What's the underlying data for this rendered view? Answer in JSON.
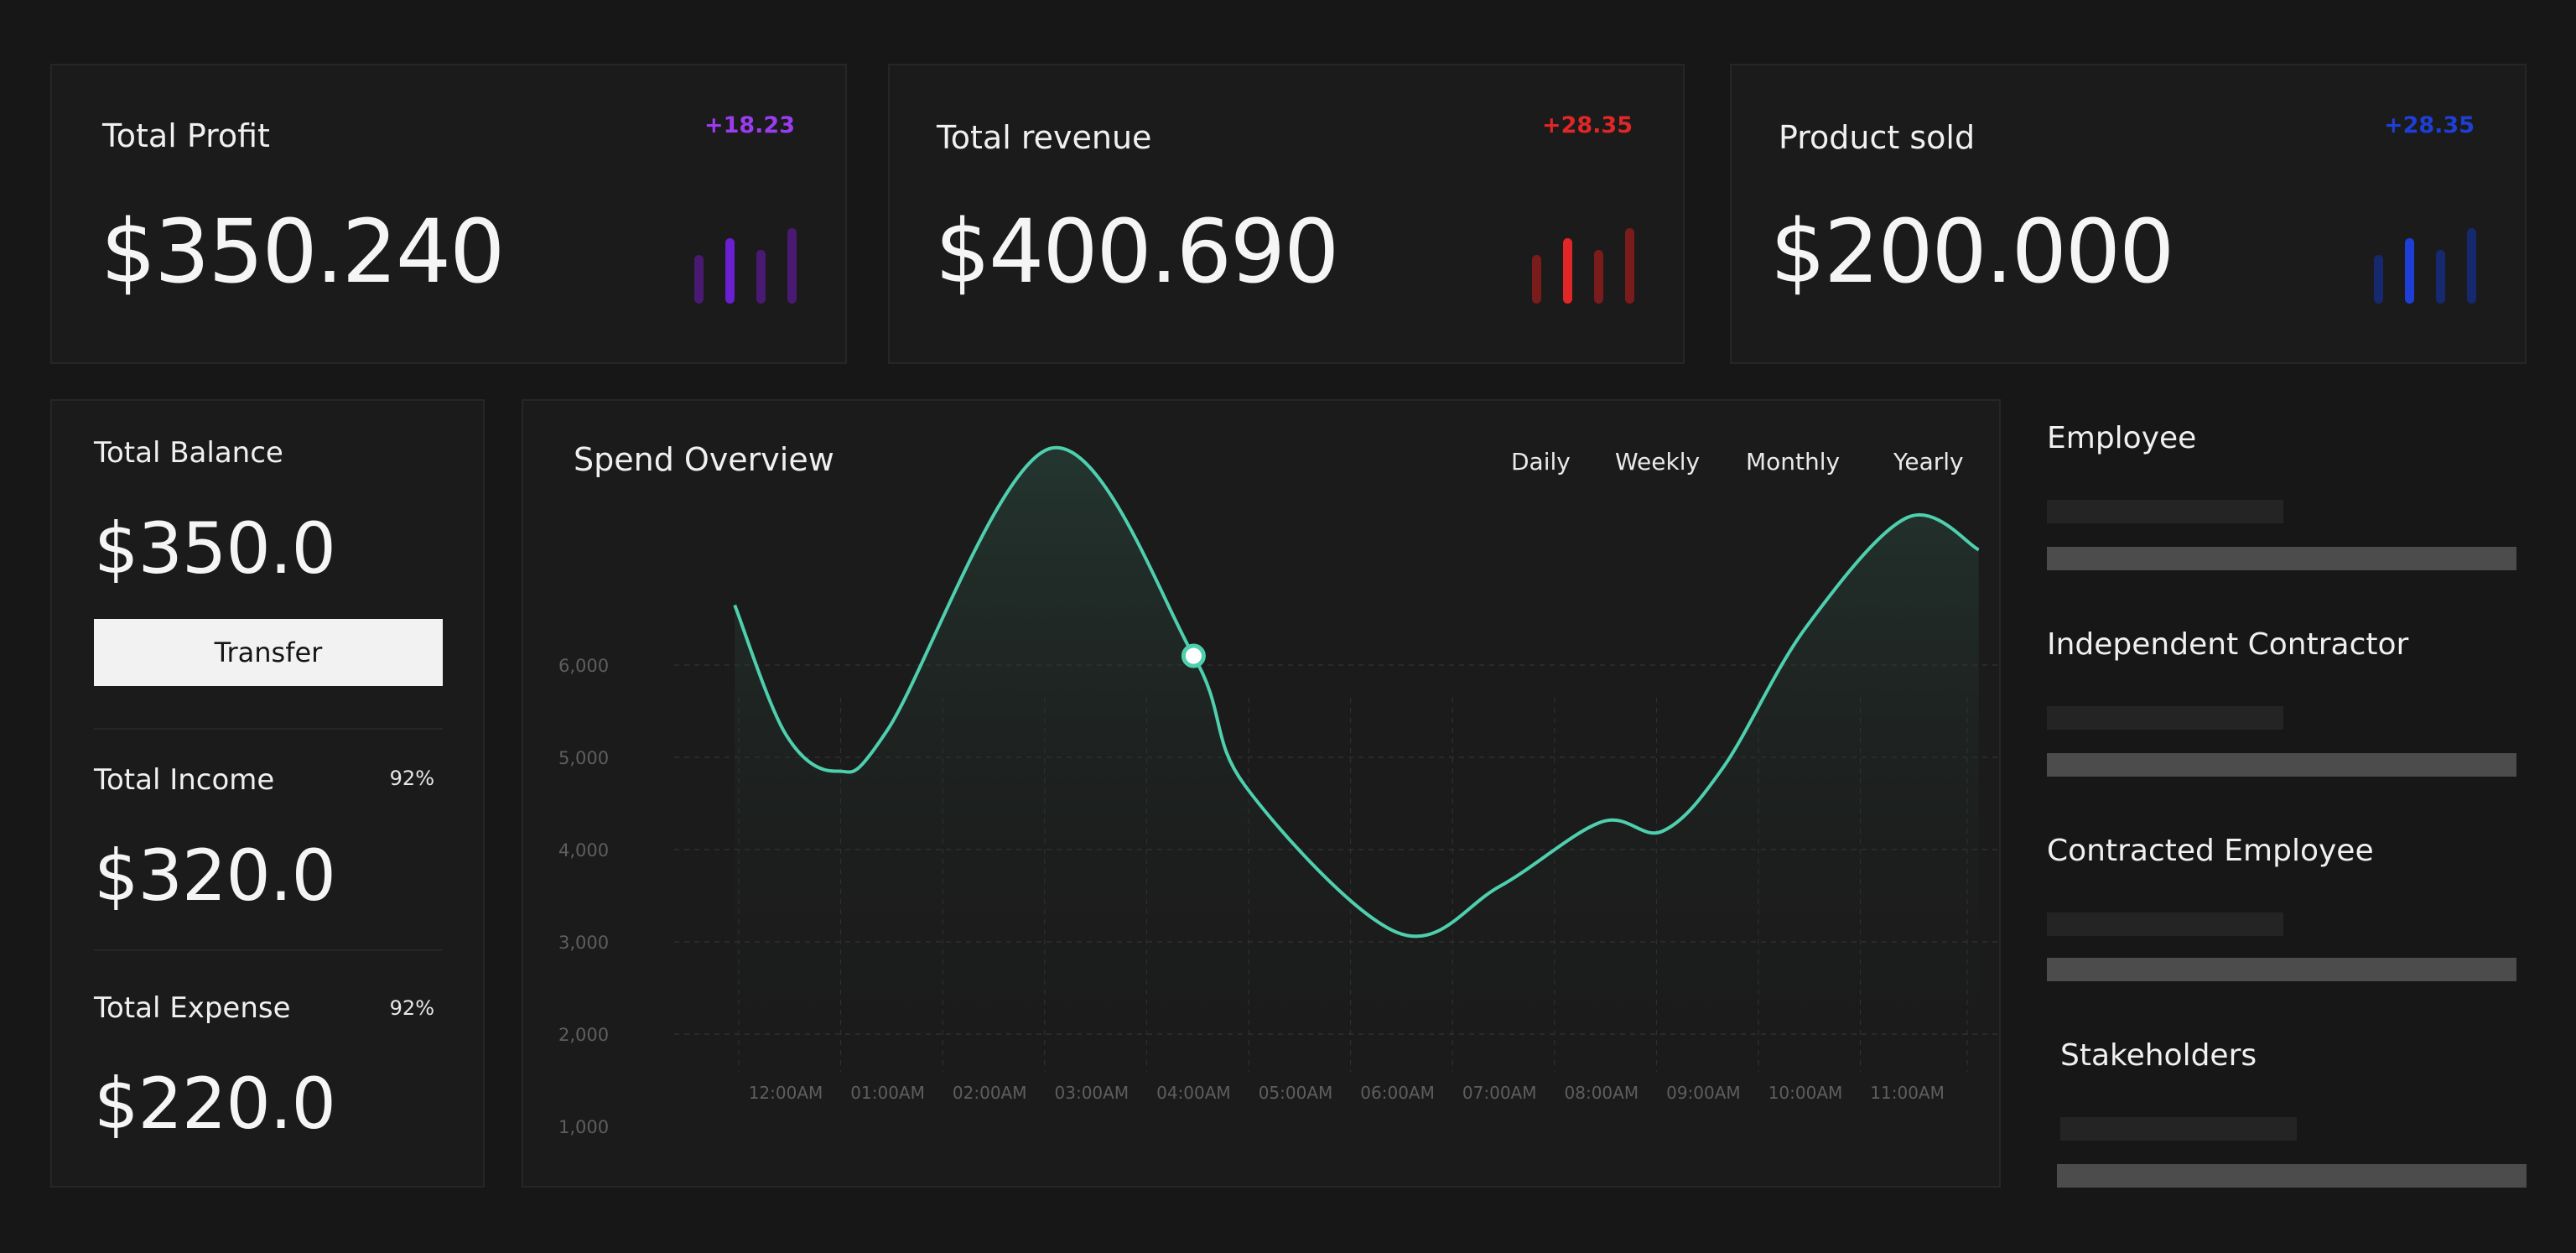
{
  "stats": [
    {
      "title": "Total Profit",
      "delta": "+18.23",
      "value": "$350.240",
      "accent": "#8b2be2",
      "accent_dim": "#4a1a73"
    },
    {
      "title": "Total revenue",
      "delta": "+28.35",
      "value": "$400.690",
      "accent": "#e02626",
      "accent_dim": "#7a1c1c"
    },
    {
      "title": "Product sold",
      "delta": "+28.35",
      "value": "$200.000",
      "accent": "#1e3fd6",
      "accent_dim": "#16296f"
    }
  ],
  "balance": {
    "title": "Total Balance",
    "value": "$350.0",
    "transfer_label": "Transfer",
    "income": {
      "label": "Total Income",
      "pct": "92%",
      "value": "$320.0"
    },
    "expense": {
      "label": "Total Expense",
      "pct": "92%",
      "value": "$220.0"
    }
  },
  "spend": {
    "title": "Spend Overview",
    "tabs": [
      "Daily",
      "Weekly",
      "Monthly",
      "Yearly"
    ]
  },
  "chart_data": {
    "type": "area",
    "title": "Spend Overview",
    "y_ticks": [
      "6,000",
      "5,000",
      "4,000",
      "3,000",
      "2,000",
      "1,000"
    ],
    "y_tick_values": [
      6000,
      5000,
      4000,
      3000,
      2000,
      1000
    ],
    "x_ticks": [
      "12:00AM",
      "01:00AM",
      "02:00AM",
      "03:00AM",
      "04:00AM",
      "05:00AM",
      "06:00AM",
      "07:00AM",
      "08:00AM",
      "09:00AM",
      "10:00AM",
      "11:00AM"
    ],
    "series": [
      {
        "x": [
          -0.5,
          0.0,
          0.5,
          1.0,
          2.6,
          4.0,
          4.5,
          6.0,
          7.0,
          8.0,
          8.6,
          9.2,
          10.0,
          11.0,
          11.7
        ],
        "y": [
          6650,
          5250,
          4850,
          5300,
          8350,
          6100,
          4700,
          3100,
          3600,
          4300,
          4200,
          4900,
          6400,
          7600,
          7250
        ]
      }
    ],
    "highlight_point": {
      "x": 4.0,
      "y": 6100
    },
    "ylim": [
      1000,
      9000
    ],
    "line_color": "#4ecfae"
  },
  "employees": [
    {
      "title": "Employee"
    },
    {
      "title": "Independent Contractor"
    },
    {
      "title": "Contracted Employee"
    },
    {
      "title": "Stakeholders"
    }
  ]
}
